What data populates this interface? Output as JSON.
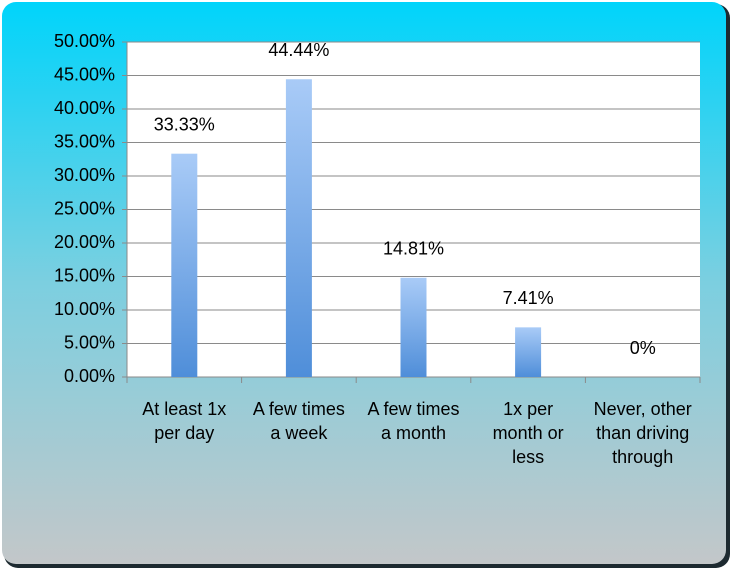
{
  "chart_data": {
    "type": "bar",
    "categories": [
      "At least 1x per day",
      "A few times a week",
      "A few times a month",
      "1x per month or less",
      "Never, other than driving through"
    ],
    "values": [
      33.33,
      44.44,
      14.81,
      7.41,
      0
    ],
    "value_labels": [
      "33.33%",
      "44.44%",
      "14.81%",
      "7.41%",
      "0%"
    ],
    "color": "#6a9fe0",
    "ylim": [
      0,
      50
    ],
    "yticks": [
      {
        "value": 0,
        "label": "0.00%"
      },
      {
        "value": 5,
        "label": "5.00%"
      },
      {
        "value": 10,
        "label": "10.00%"
      },
      {
        "value": 15,
        "label": "15.00%"
      },
      {
        "value": 20,
        "label": "20.00%"
      },
      {
        "value": 25,
        "label": "25.00%"
      },
      {
        "value": 30,
        "label": "30.00%"
      },
      {
        "value": 35,
        "label": "35.00%"
      },
      {
        "value": 40,
        "label": "40.00%"
      },
      {
        "value": 45,
        "label": "45.00%"
      },
      {
        "value": 50,
        "label": "50.00%"
      }
    ],
    "grid": true
  }
}
